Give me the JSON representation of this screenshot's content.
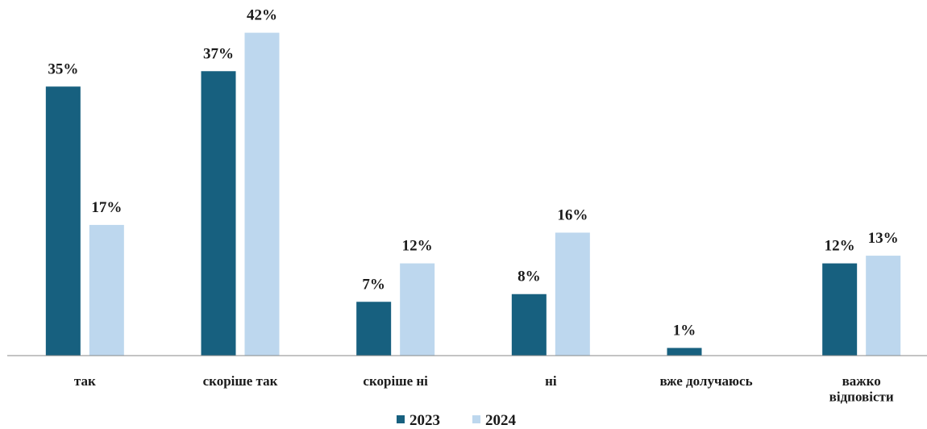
{
  "chart_data": {
    "type": "bar",
    "categories": [
      "так",
      "скоріше так",
      "скоріше ні",
      "ні",
      "вже долучаюсь",
      "важко\nвідповісти"
    ],
    "series": [
      {
        "name": "2023",
        "color": "#17607f",
        "values": [
          35,
          37,
          7,
          8,
          1,
          12
        ],
        "value_labels": [
          "35%",
          "37%",
          "7%",
          "8%",
          "1%",
          "12%"
        ]
      },
      {
        "name": "2024",
        "color": "#bdd7ee",
        "values": [
          17,
          42,
          12,
          16,
          null,
          13
        ],
        "value_labels": [
          "17%",
          "42%",
          "12%",
          "16%",
          null,
          "13%"
        ]
      }
    ],
    "ylim": [
      0,
      45
    ],
    "legend": "bottom"
  }
}
